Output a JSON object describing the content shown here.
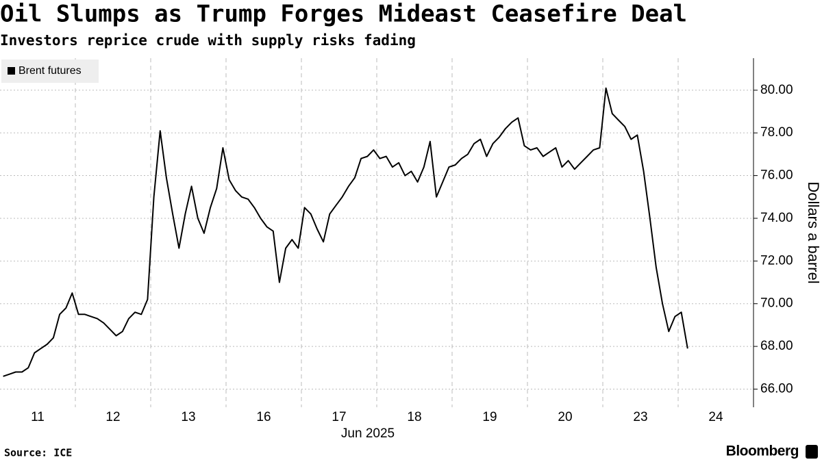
{
  "chart_data": {
    "type": "line",
    "title": "Oil Slumps as Trump Forges Mideast Ceasefire Deal",
    "subtitle": "Investors reprice crude with supply risks fading",
    "categories": [
      "11",
      "12",
      "13",
      "16",
      "17",
      "18",
      "19",
      "20",
      "23",
      "24"
    ],
    "x_label": "Jun 2025",
    "y_label": "Dollars a barrel",
    "source": "Source: ICE",
    "brand": "Bloomberg",
    "points_per_category": 12,
    "legend": "top-left",
    "series": [
      {
        "name": "Brent futures",
        "color": "#000000",
        "values": [
          [
            66.6,
            66.7,
            66.8,
            66.8,
            67.0,
            67.7,
            67.9,
            68.1,
            68.4,
            69.5,
            69.8,
            70.5
          ],
          [
            69.5,
            69.5,
            69.4,
            69.3,
            69.1,
            68.8,
            68.5,
            68.7,
            69.3,
            69.6,
            69.5,
            70.2
          ],
          [
            75.0,
            78.1,
            75.9,
            74.2,
            72.6,
            74.2,
            75.5,
            74.0,
            73.3,
            74.5,
            75.4,
            77.3
          ],
          [
            75.8,
            75.3,
            75.0,
            74.9,
            74.5,
            74.0,
            73.6,
            73.4,
            71.0,
            72.6,
            73.0,
            72.6
          ],
          [
            74.5,
            74.2,
            73.5,
            72.9,
            74.2,
            74.6,
            75.0,
            75.5,
            75.9,
            76.8,
            76.9,
            77.2
          ],
          [
            76.8,
            76.9,
            76.4,
            76.6,
            76.0,
            76.2,
            75.7,
            76.4,
            77.6,
            75.0,
            75.7,
            76.4
          ],
          [
            76.5,
            76.8,
            77.0,
            77.5,
            77.7,
            76.9,
            77.5,
            77.8,
            78.2,
            78.5,
            78.7,
            77.4
          ],
          [
            77.2,
            77.3,
            76.9,
            77.1,
            77.3,
            76.4,
            76.7,
            76.3,
            76.6,
            76.9,
            77.2,
            77.3
          ],
          [
            80.1,
            78.9,
            78.6,
            78.3,
            77.7,
            77.9,
            76.2,
            74.0,
            71.7,
            70.0,
            68.7,
            69.4
          ],
          [
            69.6,
            67.9
          ]
        ]
      }
    ],
    "ylim": [
      65.15,
      81.5
    ],
    "yticks": [
      {
        "value": 66,
        "label": "66.00"
      },
      {
        "value": 68,
        "label": "68.00"
      },
      {
        "value": 70,
        "label": "70.00"
      },
      {
        "value": 72,
        "label": "72.00"
      },
      {
        "value": 74,
        "label": "74.00"
      },
      {
        "value": 76,
        "label": "76.00"
      },
      {
        "value": 78,
        "label": "78.00"
      },
      {
        "value": 80,
        "label": "80.00"
      }
    ],
    "grid": true
  }
}
